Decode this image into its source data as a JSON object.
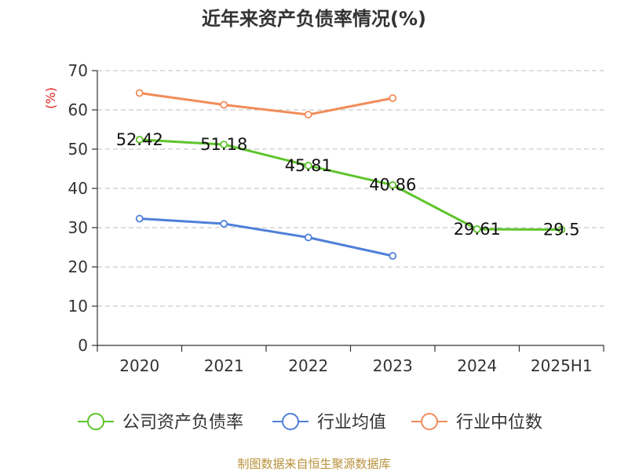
{
  "chart_data": {
    "type": "line",
    "title": "近年来资产负债率情况(%)",
    "ylabel": "(%)",
    "xlabel": "",
    "categories": [
      "2020",
      "2021",
      "2022",
      "2023",
      "2024",
      "2025H1"
    ],
    "ylim": [
      0,
      70
    ],
    "yticks": [
      0,
      10,
      20,
      30,
      40,
      50,
      60,
      70
    ],
    "grid": true,
    "legend_position": "bottom",
    "series": [
      {
        "name": "公司资产负债率",
        "color": "#5ec42a",
        "values": [
          52.42,
          51.18,
          45.81,
          40.86,
          29.61,
          29.5
        ],
        "data_labels": [
          "52.42",
          "51.18",
          "45.81",
          "40.86",
          "29.61",
          "29.5"
        ]
      },
      {
        "name": "行业均值",
        "color": "#4f7fd8",
        "values": [
          32.3,
          31.0,
          27.5,
          22.8,
          null,
          null
        ]
      },
      {
        "name": "行业中位数",
        "color": "#f28c5a",
        "values": [
          64.3,
          61.3,
          58.8,
          63.0,
          null,
          null
        ]
      }
    ],
    "source": "制图数据来自恒生聚源数据库"
  }
}
